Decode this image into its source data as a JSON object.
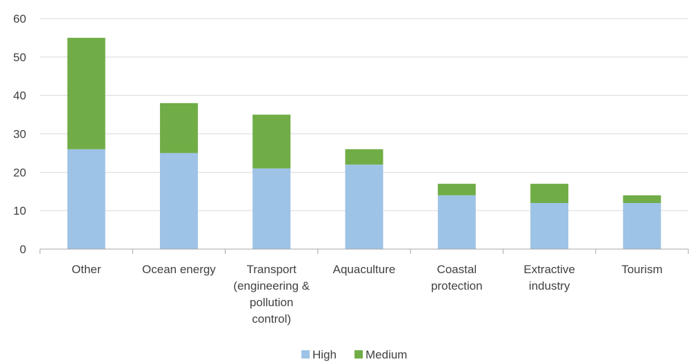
{
  "chart_data": {
    "type": "bar",
    "stacked": true,
    "title": "",
    "xlabel": "",
    "ylabel": "",
    "categories": [
      [
        "Other"
      ],
      [
        "Ocean energy"
      ],
      [
        "Transport",
        "(engineering &",
        "pollution",
        "control)"
      ],
      [
        "Aquaculture"
      ],
      [
        "Coastal",
        "protection"
      ],
      [
        "Extractive",
        "industry"
      ],
      [
        "Tourism"
      ]
    ],
    "series": [
      {
        "name": "High",
        "color": "#9dc3e6",
        "values": [
          26,
          25,
          21,
          22,
          14,
          12,
          12
        ]
      },
      {
        "name": "Medium",
        "color": "#70ad47",
        "values": [
          29,
          13,
          14,
          4,
          3,
          5,
          2
        ]
      }
    ],
    "ylim": [
      0,
      60
    ],
    "yticks": [
      0,
      10,
      20,
      30,
      40,
      50,
      60
    ],
    "grid": true,
    "legend_position": "bottom"
  }
}
